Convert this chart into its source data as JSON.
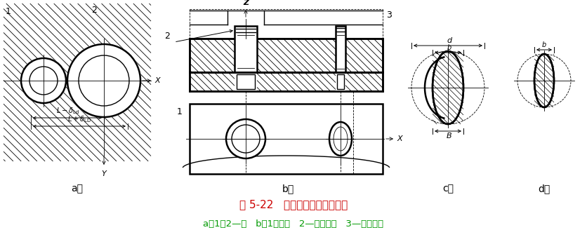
{
  "title_line1": "图 5-22   一面两孔组合定位情况",
  "title_line2": "a）1、2—孔   b）1一平面   2—短圆柱销   3—短削边销",
  "title_color": "#cc0000",
  "subtitle_color": "#009900",
  "bg_color": "#ffffff",
  "label_a": "a）",
  "label_b": "b）",
  "label_c": "c）",
  "label_d": "d）"
}
